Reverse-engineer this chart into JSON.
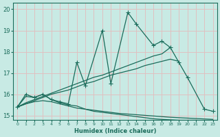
{
  "xlabel": "Humidex (Indice chaleur)",
  "xlim": [
    -0.5,
    23.5
  ],
  "ylim": [
    14.8,
    20.3
  ],
  "yticks": [
    15,
    16,
    17,
    18,
    19,
    20
  ],
  "xticks": [
    0,
    1,
    2,
    3,
    4,
    5,
    6,
    7,
    8,
    9,
    10,
    11,
    12,
    13,
    14,
    15,
    16,
    17,
    18,
    19,
    20,
    21,
    22,
    23
  ],
  "bg_color": "#c8eae4",
  "grid_color": "#e0c0c0",
  "line_color": "#1a6b5a",
  "line1_x": [
    0,
    1,
    2,
    3,
    4,
    5,
    6,
    7,
    8,
    10,
    11,
    13,
    14,
    16,
    17,
    18,
    19,
    20,
    22,
    23
  ],
  "line1_y": [
    15.4,
    16.0,
    15.85,
    16.0,
    15.75,
    15.65,
    15.55,
    17.5,
    16.4,
    19.0,
    16.5,
    19.85,
    19.3,
    18.3,
    18.5,
    18.2,
    17.5,
    16.8,
    15.3,
    15.2
  ],
  "line2_x": [
    0,
    1,
    2,
    3,
    4,
    5,
    6,
    7,
    8,
    9,
    10,
    11,
    12,
    13,
    14,
    15,
    16,
    17,
    18,
    19
  ],
  "line2_y": [
    15.4,
    15.55,
    15.7,
    15.85,
    16.0,
    16.1,
    16.2,
    16.35,
    16.5,
    16.6,
    16.75,
    16.9,
    17.0,
    17.1,
    17.2,
    17.35,
    17.45,
    17.55,
    17.65,
    17.55
  ],
  "line3_x": [
    0,
    1,
    2,
    3,
    4,
    5,
    6,
    7,
    8,
    9,
    10,
    11,
    12,
    13,
    14,
    15,
    16,
    17,
    18
  ],
  "line3_y": [
    15.4,
    15.6,
    15.75,
    15.9,
    16.05,
    16.2,
    16.35,
    16.5,
    16.65,
    16.8,
    16.9,
    17.05,
    17.2,
    17.35,
    17.5,
    17.65,
    17.8,
    17.9,
    18.2
  ],
  "line4_x": [
    0,
    1,
    2,
    3,
    4,
    5,
    6,
    7,
    8,
    9,
    10,
    11,
    12,
    13,
    14,
    15,
    16,
    17,
    18,
    19,
    20,
    21,
    22,
    23
  ],
  "line4_y": [
    15.4,
    15.9,
    15.85,
    16.0,
    15.75,
    15.6,
    15.5,
    15.45,
    15.3,
    15.2,
    15.15,
    15.1,
    15.05,
    15.0,
    14.95,
    14.9,
    14.85,
    14.82,
    14.8,
    14.78,
    14.78,
    14.78,
    14.77,
    14.77
  ],
  "line5_x": [
    0,
    1,
    2,
    3,
    4,
    5,
    6,
    7,
    8,
    9,
    10,
    11,
    12,
    13,
    14,
    15,
    16,
    17,
    18,
    19,
    20,
    21,
    22,
    23
  ],
  "line5_y": [
    15.4,
    15.55,
    15.65,
    15.7,
    15.65,
    15.55,
    15.45,
    15.35,
    15.3,
    15.25,
    15.2,
    15.15,
    15.1,
    15.07,
    15.04,
    15.01,
    14.98,
    14.95,
    14.92,
    14.9,
    14.88,
    14.86,
    14.84,
    14.82
  ],
  "marker_size": 3.5,
  "line_width": 0.9
}
